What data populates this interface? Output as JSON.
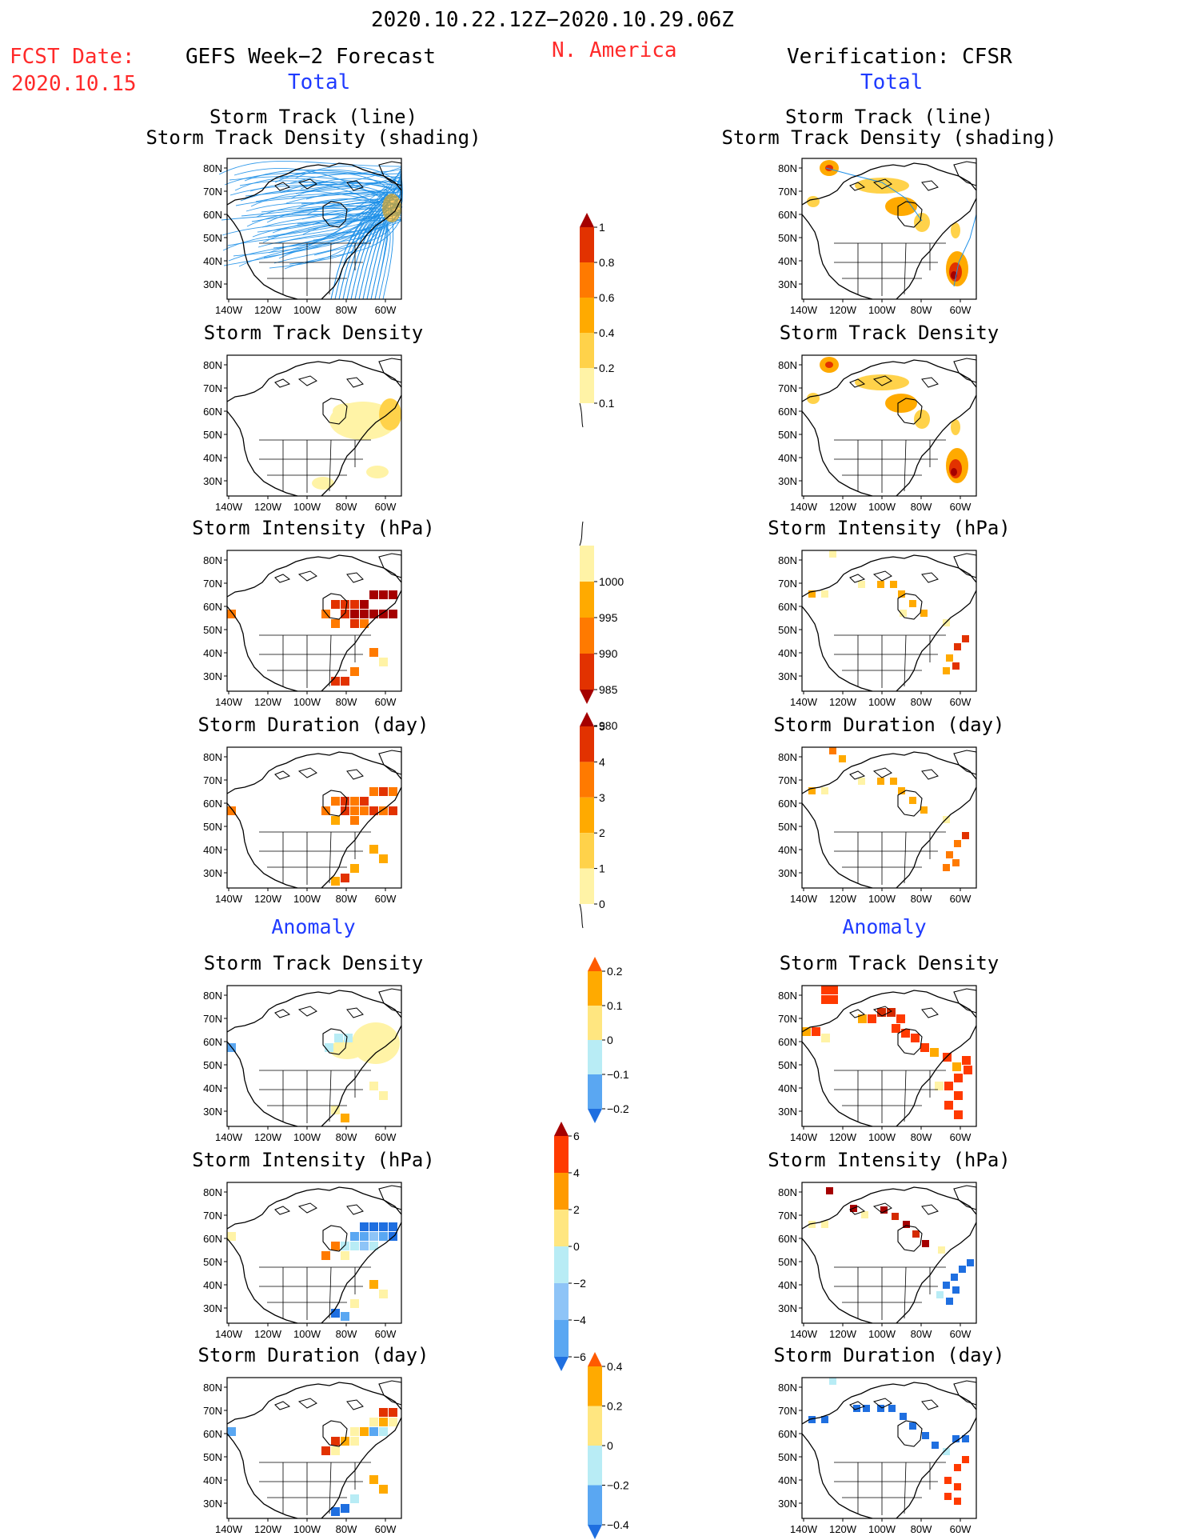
{
  "header": {
    "date_range": "2020.10.22.12Z−2020.10.29.06Z",
    "region": "N. America",
    "fcst_label": "FCST Date:",
    "fcst_date": "2020.10.15",
    "left_title": "GEFS Week−2 Forecast",
    "right_title": "Verification: CFSR",
    "total_left": "Total",
    "total_right": "Total",
    "anomaly_left": "Anomaly",
    "anomaly_right": "Anomaly"
  },
  "panels": {
    "p1_line1": "Storm Track (line)",
    "p1_line2": "Storm Track Density (shading)",
    "p2": "Storm Track Density",
    "p3": "Storm Intensity (hPa)",
    "p4": "Storm Duration (day)",
    "p5": "Storm Track Density",
    "p6": "Storm Intensity (hPa)",
    "p7": "Storm Duration (day)"
  },
  "map_axes": {
    "lat_labels": [
      "80N",
      "70N",
      "60N",
      "50N",
      "40N",
      "30N"
    ],
    "lon_labels": [
      "140W",
      "120W",
      "100W",
      "80W",
      "60W"
    ]
  },
  "colorbars": [
    {
      "id": "cb-density",
      "labels": [
        "1",
        "0.8",
        "0.6",
        "0.4",
        "0.2",
        "0.1"
      ],
      "colors": [
        "#a50000",
        "#e23200",
        "#ff7a00",
        "#ffaa00",
        "#ffd24a",
        "#fff3a6"
      ],
      "arrow_top": true,
      "arrow_bottom": false
    },
    {
      "id": "cb-intensity",
      "labels": [
        "1000",
        "995",
        "990",
        "985",
        "980"
      ],
      "colors": [
        "#fff3a6",
        "#ffaa00",
        "#ff7a00",
        "#e23200",
        "#a50000"
      ],
      "arrow_top": false,
      "arrow_bottom": true
    },
    {
      "id": "cb-duration",
      "labels": [
        "5",
        "4",
        "3",
        "2",
        "1",
        "0"
      ],
      "colors": [
        "#a50000",
        "#e23200",
        "#ff7a00",
        "#ffaa00",
        "#ffd24a",
        "#fff3a6"
      ],
      "arrow_top": true,
      "arrow_bottom": false
    },
    {
      "id": "cb-anom-density",
      "labels": [
        "0.2",
        "0.1",
        "0",
        "−0.1",
        "−0.2"
      ],
      "colors": [
        "#ff5a00",
        "#ffaa00",
        "#ffe680",
        "#b8ecf5",
        "#5aa7f2",
        "#1f6fe0"
      ],
      "arrow_top": true,
      "arrow_bottom": true
    },
    {
      "id": "cb-anom-intensity",
      "labels": [
        "6",
        "4",
        "2",
        "0",
        "−2",
        "−4",
        "−6"
      ],
      "colors": [
        "#a50000",
        "#ff3a00",
        "#ff9a00",
        "#ffe680",
        "#b8ecf5",
        "#8ec4f7",
        "#5aa7f2",
        "#1f6fe0"
      ],
      "arrow_top": true,
      "arrow_bottom": true
    },
    {
      "id": "cb-anom-duration",
      "labels": [
        "0.4",
        "0.2",
        "0",
        "−0.2",
        "−0.4"
      ],
      "colors": [
        "#ff5a00",
        "#ffaa00",
        "#ffe680",
        "#b8ecf5",
        "#5aa7f2",
        "#1f6fe0"
      ],
      "arrow_top": true,
      "arrow_bottom": true
    }
  ],
  "colors": {
    "track_line": "#1e90e8",
    "accent_red": "#ff2a2a",
    "accent_blue": "#1f3bff"
  }
}
